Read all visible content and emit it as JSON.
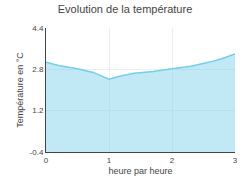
{
  "chart_data": {
    "type": "area",
    "title": "Evolution de la température",
    "xlabel": "heure par heure",
    "ylabel": "Température en °C",
    "x": [
      0,
      0.2,
      0.5,
      0.75,
      1.0,
      1.15,
      1.4,
      1.7,
      2.0,
      2.3,
      2.6,
      2.8,
      3.0
    ],
    "values": [
      3.08,
      2.95,
      2.82,
      2.68,
      2.42,
      2.52,
      2.65,
      2.72,
      2.82,
      2.92,
      3.08,
      3.22,
      3.4
    ],
    "xlim": [
      0,
      3
    ],
    "ylim": [
      -0.4,
      4.4
    ],
    "xticks": [
      0,
      1,
      2,
      3
    ],
    "yticks": [
      -0.4,
      1.2,
      2.8,
      4.4
    ],
    "color": "#74cfe8",
    "grid": true
  }
}
